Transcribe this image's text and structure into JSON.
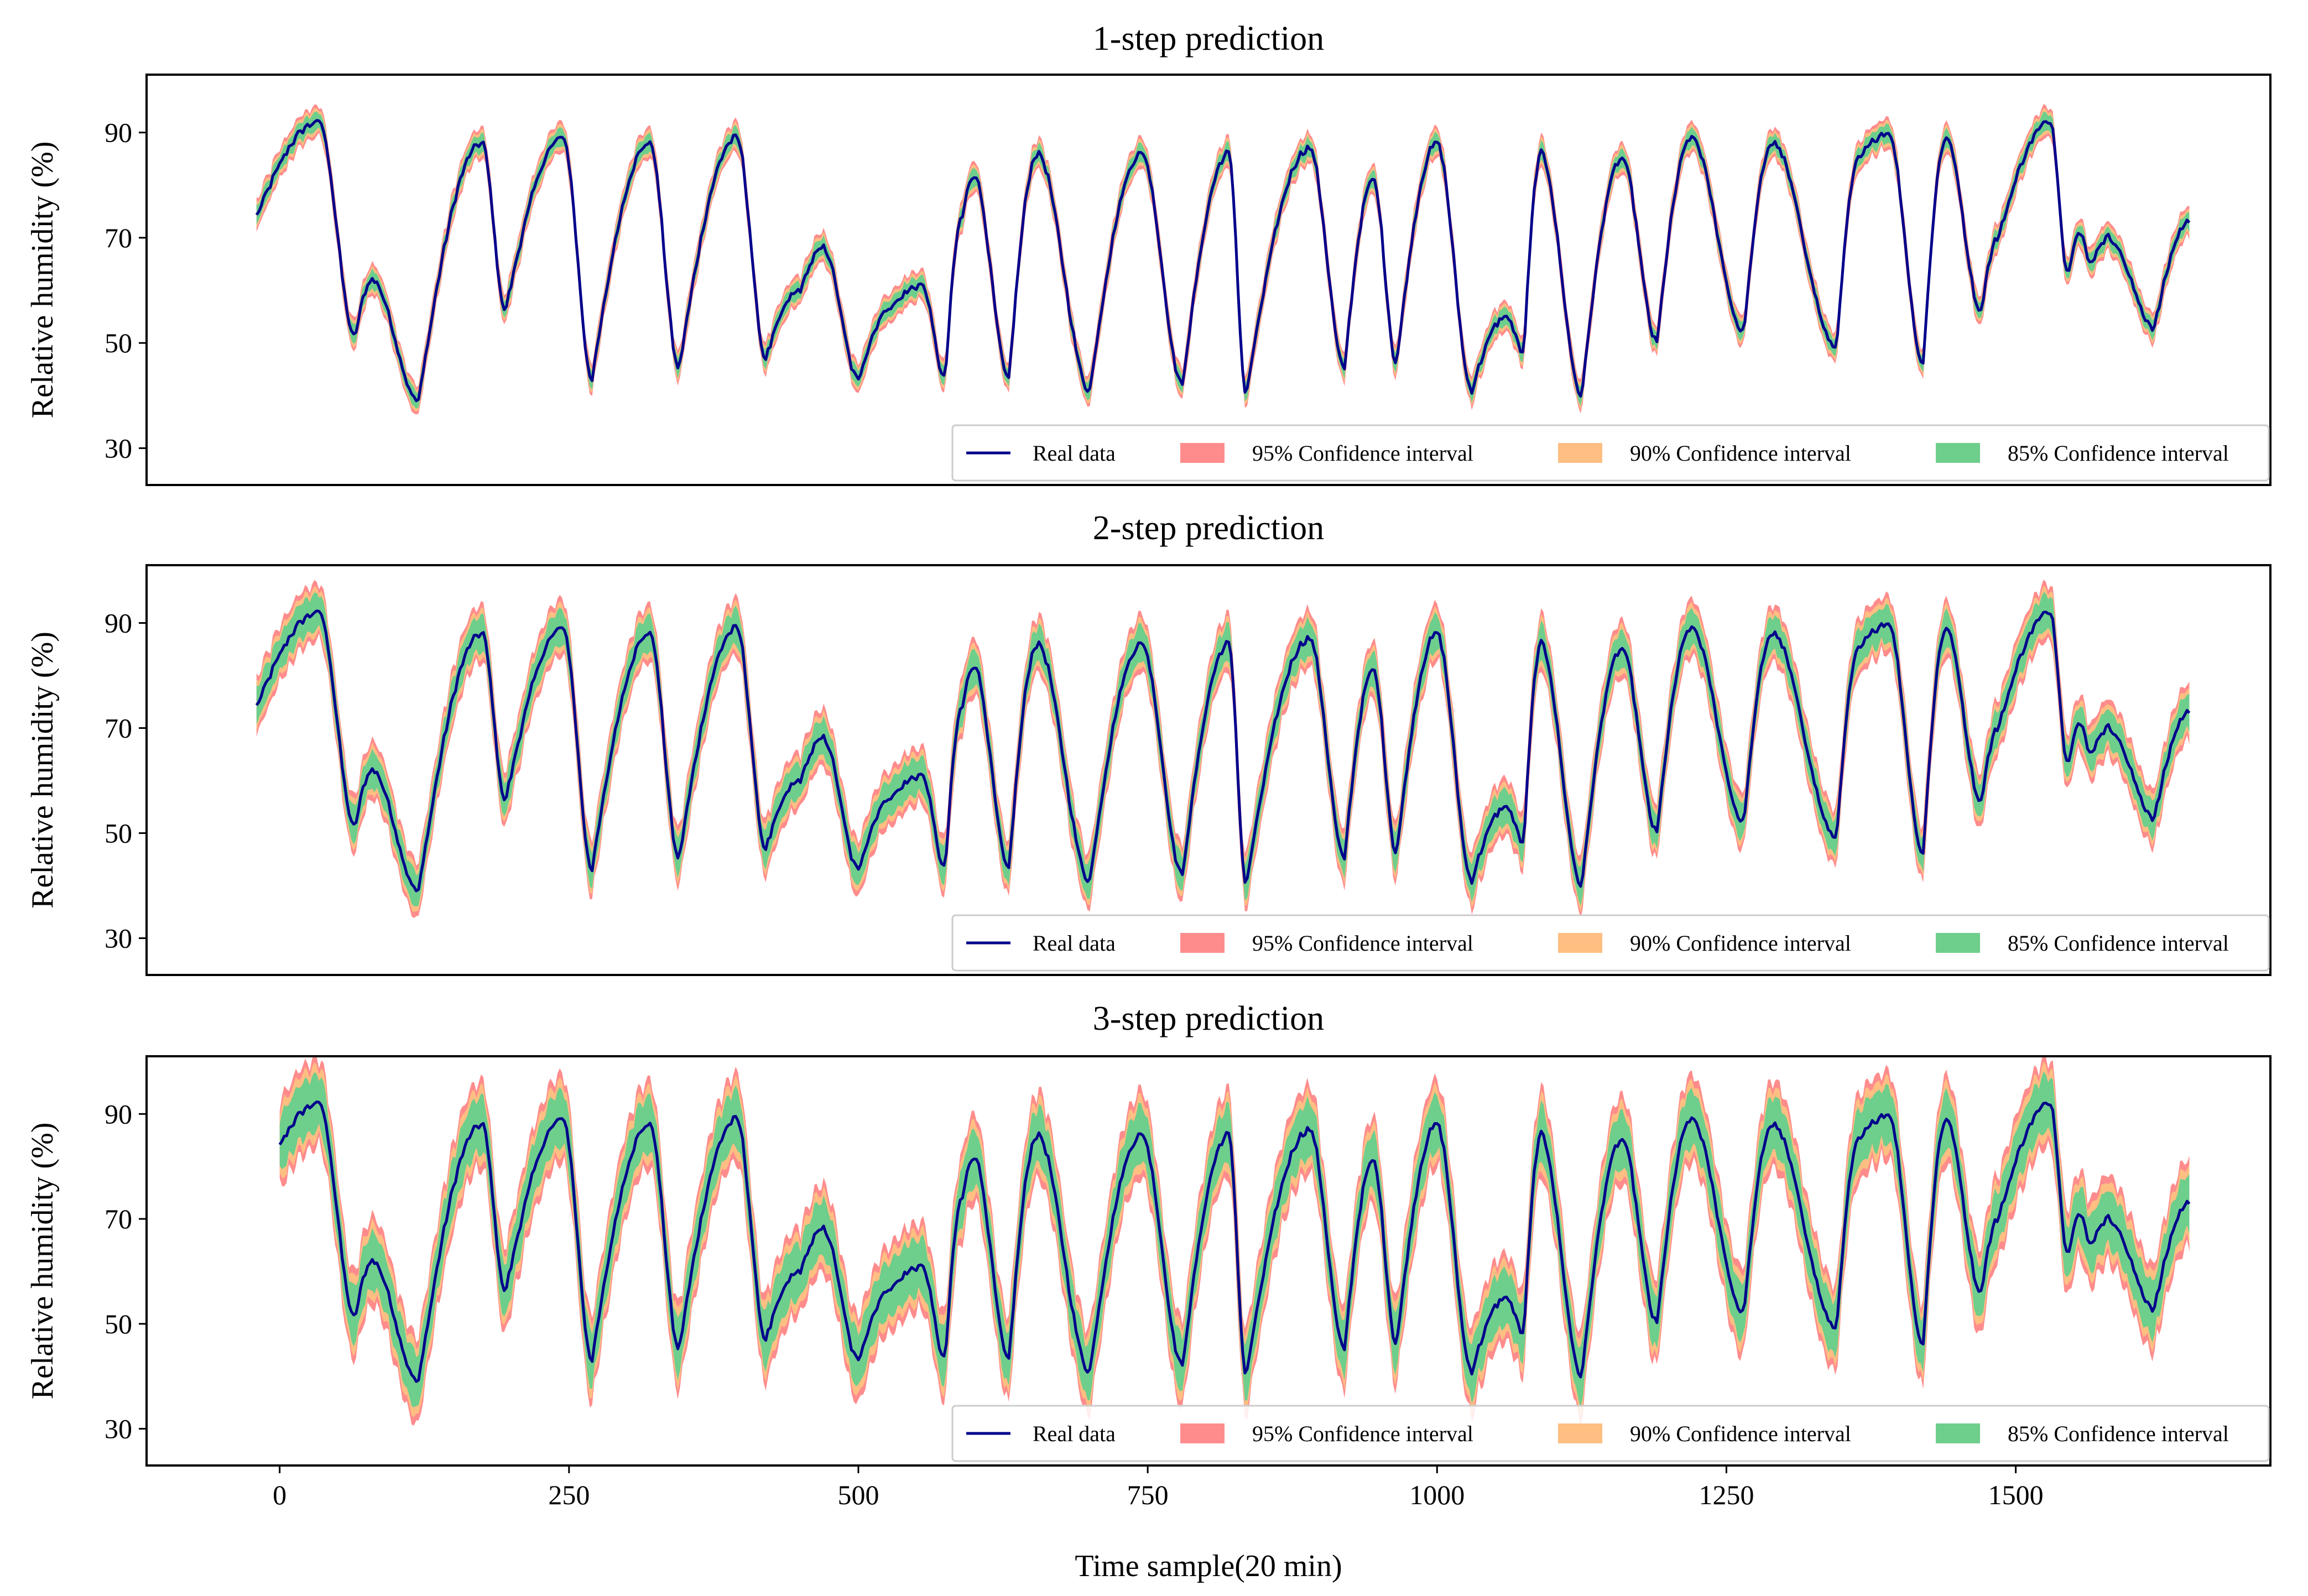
{
  "colors": {
    "real": "#00008b",
    "ci95": "#ff8c8c",
    "ci90": "#ffbe82",
    "ci85": "#6ece8c",
    "axis": "#000000"
  },
  "chart_data": [
    {
      "type": "line",
      "title": "1-step prediction",
      "xlabel": "",
      "ylabel": "Relative humidity (%)",
      "xlim": [
        -115,
        1720
      ],
      "ylim": [
        23,
        101
      ],
      "yticks": [
        30,
        50,
        70,
        90
      ],
      "xticks": [],
      "half_widths": {
        "95%": 2.8,
        "90%": 2.2,
        "85%": 1.6
      },
      "legend": {
        "position": "lower-right",
        "entries": [
          "Real data",
          "95% Confidence interval",
          "90% Confidence interval",
          "85% Confidence interval"
        ]
      },
      "series_x_range": [
        -20,
        1650
      ]
    },
    {
      "type": "line",
      "title": "2-step prediction",
      "xlabel": "",
      "ylabel": "Relative humidity (%)",
      "xlim": [
        -115,
        1720
      ],
      "ylim": [
        23,
        101
      ],
      "yticks": [
        30,
        50,
        70,
        90
      ],
      "xticks": [],
      "half_widths": {
        "95%": 5.2,
        "90%": 4.2,
        "85%": 3.2
      },
      "legend": {
        "position": "lower-right",
        "entries": [
          "Real data",
          "95% Confidence interval",
          "90% Confidence interval",
          "85% Confidence interval"
        ]
      },
      "series_x_range": [
        -20,
        1650
      ]
    },
    {
      "type": "line",
      "title": "3-step prediction",
      "xlabel": "Time sample(20 min)",
      "ylabel": "Relative humidity (%)",
      "xlim": [
        -115,
        1720
      ],
      "ylim": [
        23,
        101
      ],
      "yticks": [
        30,
        50,
        70,
        90
      ],
      "xticks": [
        0,
        250,
        500,
        750,
        1000,
        1250,
        1500
      ],
      "half_widths": {
        "95%": 8.0,
        "90%": 6.6,
        "85%": 5.0
      },
      "legend": {
        "position": "lower-right",
        "entries": [
          "Real data",
          "95% Confidence interval",
          "90% Confidence interval",
          "85% Confidence interval"
        ]
      },
      "series_x_range": [
        0,
        1650
      ]
    }
  ],
  "real_data_keypoints": {
    "note": "approximate daily humidity cycle read from the plot, shared by all three panels",
    "x": [
      -20,
      34,
      65,
      80,
      120,
      175,
      195,
      245,
      270,
      320,
      345,
      395,
      420,
      450,
      470,
      500,
      530,
      555,
      575,
      590,
      600,
      630,
      655,
      700,
      745,
      780,
      820,
      835,
      890,
      920,
      945,
      965,
      1000,
      1030,
      1060,
      1075,
      1090,
      1125,
      1160,
      1190,
      1220,
      1265,
      1290,
      1345,
      1365,
      1390,
      1420,
      1440,
      1470,
      1485,
      1530,
      1545,
      1555,
      1565,
      1580,
      1620,
      1650
    ],
    "y": [
      74,
      92,
      51,
      62,
      39,
      88,
      56,
      89,
      43,
      88,
      45,
      89,
      47,
      60,
      68,
      43,
      57,
      61,
      43,
      74,
      82,
      43,
      86,
      41,
      86,
      42,
      86,
      40,
      87,
      45,
      81,
      46,
      88,
      41,
      55,
      48,
      86,
      40,
      85,
      50,
      89,
      52,
      88,
      49,
      85,
      90,
      46,
      89,
      56,
      70,
      92,
      63,
      71,
      65,
      70,
      53,
      73
    ]
  }
}
